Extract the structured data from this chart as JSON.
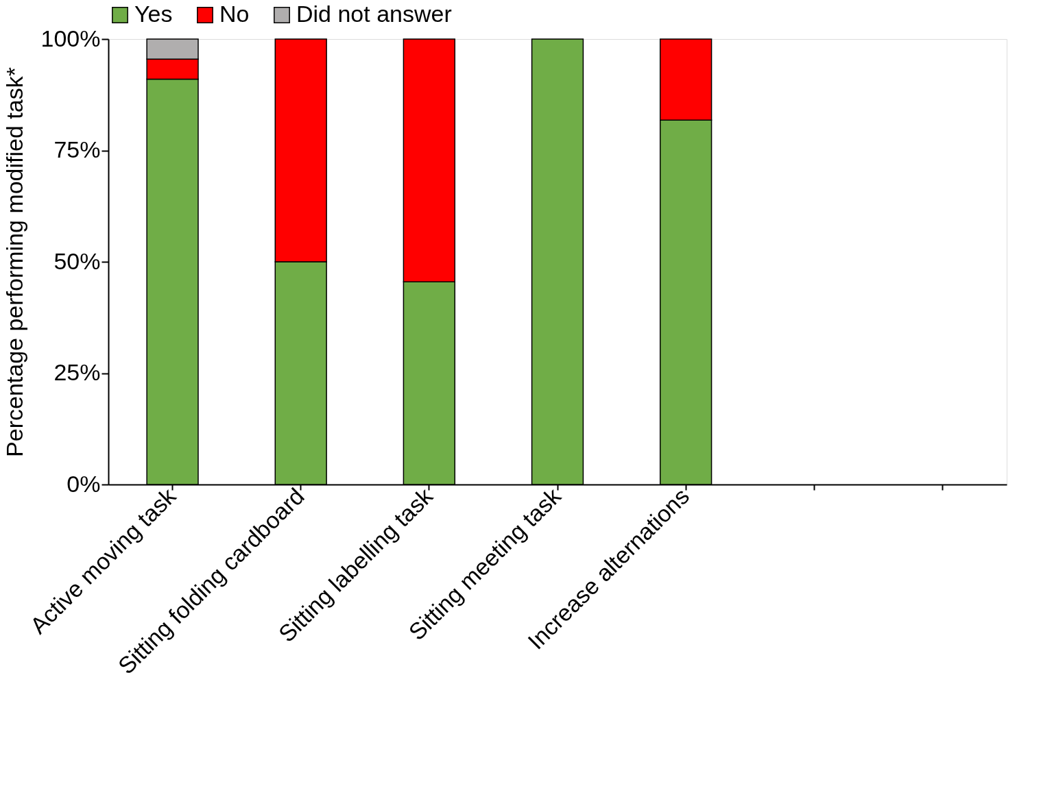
{
  "chart_data": {
    "type": "bar",
    "stacked": true,
    "ylabel": "Percentage performing modified task*",
    "categories": [
      "Active moving task",
      "Sitting folding cardboard",
      "Sitting labelling task",
      "Sitting meeting task",
      "Increase alternations",
      null,
      null
    ],
    "series": [
      {
        "name": "Yes",
        "color": "#70ad47",
        "values": [
          91,
          50,
          45.5,
          100,
          81.8,
          null,
          null
        ]
      },
      {
        "name": "No",
        "color": "#ff0000",
        "values": [
          4.5,
          50,
          54.5,
          null,
          18.2,
          null,
          null
        ]
      },
      {
        "name": "Did not answer",
        "color": "#b0aeae",
        "values": [
          4.5,
          null,
          null,
          null,
          null,
          null,
          null
        ]
      }
    ],
    "ylim": [
      0,
      100
    ],
    "yticks": [
      {
        "value": 0,
        "label": "0%"
      },
      {
        "value": 25,
        "label": "25%"
      },
      {
        "value": 50,
        "label": "50%"
      },
      {
        "value": 75,
        "label": "75%"
      },
      {
        "value": 100,
        "label": "100%"
      }
    ],
    "grid": false,
    "legend": "top"
  }
}
